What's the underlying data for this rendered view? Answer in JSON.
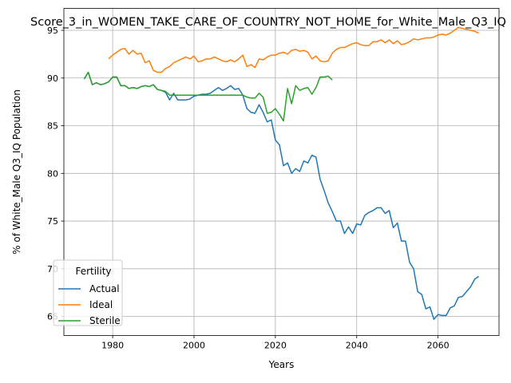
{
  "chart_data": {
    "type": "line",
    "title": "Score_3_in_WOMEN_TAKE_CARE_OF_COUNTRY_NOT_HOME_for_White_Male_Q3_IQ",
    "xlabel": "Years",
    "ylabel": "% of White_Male Q3_IQ Population",
    "xlim": [
      1968,
      2075
    ],
    "ylim": [
      63,
      97.3
    ],
    "xticks": [
      1980,
      2000,
      2020,
      2040,
      2060
    ],
    "yticks": [
      65,
      70,
      75,
      80,
      85,
      90,
      95
    ],
    "grid": true,
    "legend": {
      "title": "Fertility",
      "position": "lower-left"
    },
    "series": [
      {
        "name": "Actual",
        "color": "#1f77b4",
        "x": [
          1973,
          1974,
          1975,
          1976,
          1977,
          1978,
          1979,
          1980,
          1981,
          1982,
          1983,
          1984,
          1985,
          1986,
          1987,
          1988,
          1989,
          1990,
          1991,
          1992,
          1993,
          1994,
          1995,
          1996,
          1997,
          1998,
          1999,
          2000,
          2001,
          2002,
          2003,
          2004,
          2005,
          2006,
          2007,
          2008,
          2009,
          2010,
          2011,
          2012,
          2013,
          2014,
          2015,
          2016,
          2017,
          2018,
          2019,
          2020,
          2021,
          2022,
          2023,
          2024,
          2025,
          2026,
          2027,
          2028,
          2029,
          2030,
          2031,
          2032,
          2033,
          2034,
          2035,
          2036,
          2037,
          2038,
          2039,
          2040,
          2041,
          2042,
          2043,
          2044,
          2045,
          2046,
          2047,
          2048,
          2049,
          2050,
          2051,
          2052,
          2053,
          2054,
          2055,
          2056,
          2057,
          2058,
          2059,
          2060,
          2061,
          2062,
          2063,
          2064,
          2065,
          2066,
          2067,
          2068,
          2069,
          2070
        ],
        "values": [
          89.9,
          90.6,
          89.3,
          89.5,
          89.3,
          89.4,
          89.6,
          90.1,
          90.1,
          89.2,
          89.2,
          88.9,
          89.0,
          88.9,
          89.1,
          89.2,
          89.1,
          89.3,
          88.8,
          88.7,
          88.5,
          87.7,
          88.4,
          87.7,
          87.7,
          87.7,
          87.8,
          88.1,
          88.2,
          88.3,
          88.3,
          88.4,
          88.7,
          89.0,
          88.7,
          88.9,
          89.2,
          88.8,
          88.9,
          88.2,
          86.8,
          86.4,
          86.3,
          87.2,
          86.4,
          85.4,
          85.6,
          83.5,
          83.0,
          80.8,
          81.1,
          80.0,
          80.5,
          80.2,
          81.3,
          81.1,
          81.9,
          81.7,
          79.4,
          78.2,
          76.9,
          76.0,
          75.0,
          75.0,
          73.7,
          74.4,
          73.7,
          74.7,
          74.6,
          75.6,
          75.9,
          76.1,
          76.4,
          76.4,
          75.8,
          76.1,
          74.3,
          74.8,
          72.9,
          72.9,
          70.7,
          70.0,
          67.6,
          67.3,
          65.8,
          66.0,
          64.7,
          65.2,
          65.1,
          65.1,
          65.9,
          66.1,
          67.0,
          67.1,
          67.6,
          68.1,
          68.9,
          69.2
        ]
      },
      {
        "name": "Ideal",
        "color": "#ff7f0e",
        "x": [
          1979,
          1980,
          1981,
          1982,
          1983,
          1984,
          1985,
          1986,
          1987,
          1988,
          1989,
          1990,
          1991,
          1992,
          1993,
          1994,
          1995,
          1996,
          1997,
          1998,
          1999,
          2000,
          2001,
          2002,
          2003,
          2004,
          2005,
          2006,
          2007,
          2008,
          2009,
          2010,
          2011,
          2012,
          2013,
          2014,
          2015,
          2016,
          2017,
          2018,
          2019,
          2020,
          2021,
          2022,
          2023,
          2024,
          2025,
          2026,
          2027,
          2028,
          2029,
          2030,
          2031,
          2032,
          2033,
          2034,
          2035,
          2036,
          2037,
          2038,
          2039,
          2040,
          2041,
          2042,
          2043,
          2044,
          2045,
          2046,
          2047,
          2048,
          2049,
          2050,
          2051,
          2052,
          2053,
          2054,
          2055,
          2056,
          2057,
          2058,
          2059,
          2060,
          2061,
          2062,
          2063,
          2064,
          2065,
          2066,
          2067,
          2068,
          2069,
          2070
        ],
        "values": [
          92.0,
          92.4,
          92.7,
          93.0,
          93.1,
          92.5,
          92.9,
          92.5,
          92.6,
          91.6,
          91.8,
          90.8,
          90.6,
          90.6,
          91.0,
          91.2,
          91.6,
          91.8,
          92.0,
          92.2,
          92.0,
          92.3,
          91.7,
          91.8,
          92.0,
          92.0,
          92.2,
          92.0,
          91.8,
          91.7,
          91.9,
          91.7,
          92.0,
          92.4,
          91.2,
          91.4,
          91.1,
          92.0,
          91.9,
          92.2,
          92.4,
          92.4,
          92.6,
          92.7,
          92.5,
          92.9,
          93.0,
          92.8,
          92.9,
          92.7,
          92.0,
          92.3,
          91.8,
          91.7,
          91.8,
          92.6,
          93.0,
          93.2,
          93.2,
          93.4,
          93.6,
          93.7,
          93.5,
          93.4,
          93.4,
          93.8,
          93.8,
          94.0,
          93.7,
          94.0,
          93.6,
          93.9,
          93.5,
          93.6,
          93.8,
          94.1,
          94.0,
          94.1,
          94.2,
          94.2,
          94.3,
          94.5,
          94.6,
          94.5,
          94.7,
          95.0,
          95.3,
          95.2,
          95.1,
          95.0,
          94.9,
          94.7
        ]
      },
      {
        "name": "Sterile",
        "color": "#2ca02c",
        "x": [
          1973,
          1974,
          1975,
          1976,
          1977,
          1978,
          1979,
          1980,
          1981,
          1982,
          1983,
          1984,
          1985,
          1986,
          1987,
          1988,
          1989,
          1990,
          1991,
          1992,
          1993,
          1994,
          1995,
          1996,
          1997,
          1998,
          1999,
          2000,
          2001,
          2002,
          2003,
          2004,
          2005,
          2006,
          2007,
          2008,
          2009,
          2010,
          2011,
          2012,
          2013,
          2014,
          2015,
          2016,
          2017,
          2018,
          2019,
          2020,
          2021,
          2022,
          2023,
          2024,
          2025,
          2026,
          2027,
          2028,
          2029,
          2030,
          2031,
          2032,
          2033,
          2034
        ],
        "values": [
          89.9,
          90.6,
          89.3,
          89.5,
          89.3,
          89.4,
          89.6,
          90.1,
          90.1,
          89.2,
          89.2,
          88.9,
          89.0,
          88.9,
          89.1,
          89.2,
          89.1,
          89.3,
          88.8,
          88.7,
          88.6,
          88.2,
          88.2,
          88.2,
          88.2,
          88.2,
          88.2,
          88.2,
          88.2,
          88.2,
          88.2,
          88.2,
          88.2,
          88.2,
          88.2,
          88.2,
          88.2,
          88.2,
          88.2,
          88.2,
          88.0,
          87.9,
          87.9,
          88.4,
          88.0,
          86.3,
          86.4,
          86.8,
          86.2,
          85.5,
          88.9,
          87.3,
          89.2,
          88.7,
          88.9,
          89.0,
          88.3,
          89.0,
          90.1,
          90.1,
          90.2,
          89.8
        ]
      }
    ]
  }
}
